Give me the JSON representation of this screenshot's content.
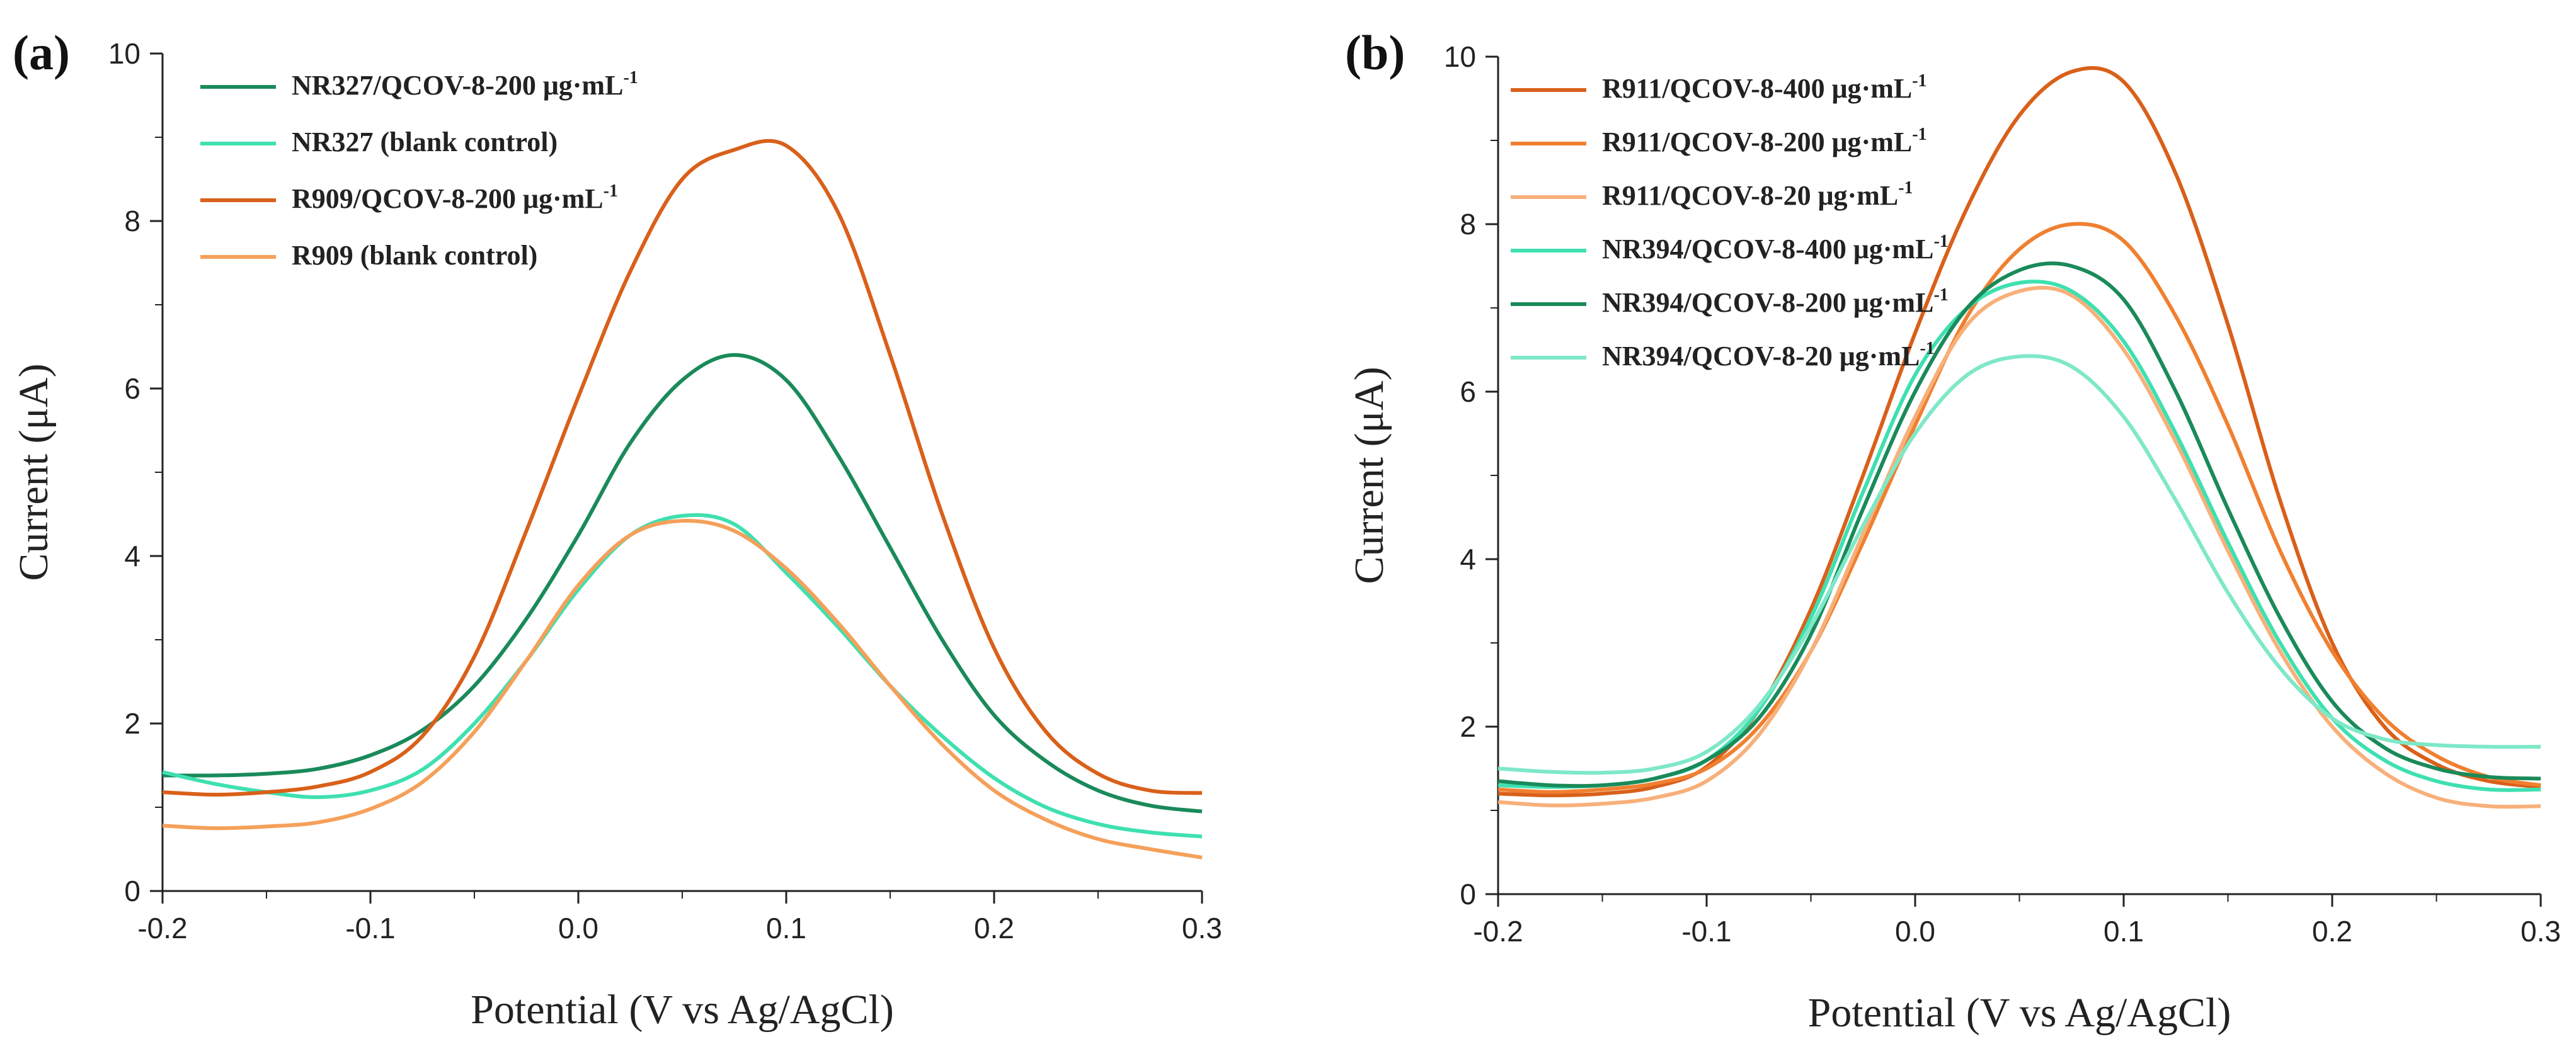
{
  "chart_data": [
    {
      "type": "line",
      "panel_label": "(a)",
      "xlabel": "Potential (V vs Ag/AgCl)",
      "ylabel": "Current (μA)",
      "xlim": [
        -0.2,
        0.3
      ],
      "ylim": [
        0,
        10
      ],
      "xticks": [
        "-0.2",
        "-0.1",
        "0.0",
        "0.1",
        "0.2",
        "0.3"
      ],
      "yticks": [
        "0",
        "2",
        "4",
        "6",
        "8",
        "10"
      ],
      "grid": false,
      "legend_position": "top-left",
      "x": [
        -0.2,
        -0.175,
        -0.15,
        -0.125,
        -0.1,
        -0.075,
        -0.05,
        -0.025,
        0.0,
        0.025,
        0.05,
        0.075,
        0.1,
        0.125,
        0.15,
        0.175,
        0.2,
        0.225,
        0.25,
        0.275,
        0.3
      ],
      "series": [
        {
          "name": "NR327/QCOV-8-200 μg·mL",
          "name_sup": "-1",
          "color": "#1a8a5a",
          "values": [
            1.38,
            1.38,
            1.4,
            1.46,
            1.62,
            1.92,
            2.45,
            3.25,
            4.25,
            5.35,
            6.1,
            6.4,
            6.1,
            5.2,
            4.1,
            3.0,
            2.1,
            1.55,
            1.2,
            1.02,
            0.95
          ]
        },
        {
          "name": "NR327 (blank control)",
          "color": "#3fe0b0",
          "values": [
            1.42,
            1.28,
            1.18,
            1.12,
            1.2,
            1.45,
            2.0,
            2.75,
            3.6,
            4.25,
            4.48,
            4.38,
            3.8,
            3.15,
            2.45,
            1.85,
            1.35,
            1.0,
            0.8,
            0.7,
            0.65
          ]
        },
        {
          "name": "R909/QCOV-8-200 μg·mL",
          "name_sup": "-1",
          "color": "#d9601a",
          "values": [
            1.18,
            1.15,
            1.18,
            1.25,
            1.42,
            1.85,
            2.8,
            4.3,
            5.9,
            7.4,
            8.5,
            8.85,
            8.9,
            8.1,
            6.4,
            4.5,
            2.9,
            1.9,
            1.4,
            1.2,
            1.17
          ]
        },
        {
          "name": "R909 (blank control)",
          "color": "#f5a05a",
          "values": [
            0.78,
            0.75,
            0.77,
            0.82,
            0.98,
            1.3,
            1.9,
            2.75,
            3.65,
            4.25,
            4.42,
            4.3,
            3.85,
            3.2,
            2.45,
            1.75,
            1.2,
            0.85,
            0.62,
            0.5,
            0.4
          ]
        }
      ]
    },
    {
      "type": "line",
      "panel_label": "(b)",
      "xlabel": "Potential (V vs Ag/AgCl)",
      "ylabel": "Current (μA)",
      "xlim": [
        -0.2,
        0.3
      ],
      "ylim": [
        0,
        10
      ],
      "xticks": [
        "-0.2",
        "-0.1",
        "0.0",
        "0.1",
        "0.2",
        "0.3"
      ],
      "yticks": [
        "0",
        "2",
        "4",
        "6",
        "8",
        "10"
      ],
      "grid": false,
      "legend_position": "top-left",
      "x": [
        -0.2,
        -0.175,
        -0.15,
        -0.125,
        -0.1,
        -0.075,
        -0.05,
        -0.025,
        0.0,
        0.025,
        0.05,
        0.075,
        0.1,
        0.125,
        0.15,
        0.175,
        0.2,
        0.225,
        0.25,
        0.275,
        0.3
      ],
      "series": [
        {
          "name": "R911/QCOV-8-400 μg·mL",
          "name_sup": "-1",
          "color": "#d9601a",
          "values": [
            1.2,
            1.18,
            1.2,
            1.28,
            1.52,
            2.2,
            3.4,
            5.0,
            6.7,
            8.2,
            9.3,
            9.82,
            9.7,
            8.6,
            6.8,
            4.7,
            3.0,
            2.0,
            1.55,
            1.35,
            1.28
          ]
        },
        {
          "name": "R911/QCOV-8-200 μg·mL",
          "name_sup": "-1",
          "color": "#f08030",
          "values": [
            1.25,
            1.22,
            1.25,
            1.32,
            1.5,
            2.0,
            2.9,
            4.2,
            5.6,
            6.9,
            7.7,
            8.0,
            7.8,
            6.9,
            5.6,
            4.1,
            2.9,
            2.1,
            1.65,
            1.4,
            1.3
          ]
        },
        {
          "name": "R911/QCOV-8-20 μg·mL",
          "name_sup": "-1",
          "color": "#f7b07a",
          "values": [
            1.1,
            1.06,
            1.08,
            1.15,
            1.35,
            1.9,
            2.9,
            4.3,
            5.7,
            6.8,
            7.2,
            7.15,
            6.5,
            5.4,
            4.1,
            2.9,
            2.0,
            1.45,
            1.15,
            1.05,
            1.05
          ]
        },
        {
          "name": "NR394/QCOV-8-400 μg·mL",
          "name_sup": "-1",
          "color": "#3fe0b0",
          "values": [
            1.3,
            1.28,
            1.3,
            1.38,
            1.6,
            2.2,
            3.3,
            4.8,
            6.2,
            7.0,
            7.3,
            7.2,
            6.6,
            5.5,
            4.2,
            3.0,
            2.1,
            1.6,
            1.35,
            1.25,
            1.25
          ]
        },
        {
          "name": "NR394/QCOV-8-200 μg·mL",
          "name_sup": "-1",
          "color": "#1a8a5a",
          "values": [
            1.35,
            1.3,
            1.3,
            1.38,
            1.6,
            2.1,
            3.1,
            4.6,
            6.0,
            7.0,
            7.45,
            7.5,
            7.1,
            6.0,
            4.6,
            3.3,
            2.3,
            1.75,
            1.5,
            1.4,
            1.38
          ]
        },
        {
          "name": "NR394/QCOV-8-20 μg·mL",
          "name_sup": "-1",
          "color": "#7ee8c8",
          "values": [
            1.5,
            1.46,
            1.45,
            1.5,
            1.7,
            2.25,
            3.2,
            4.4,
            5.5,
            6.2,
            6.42,
            6.3,
            5.7,
            4.7,
            3.6,
            2.7,
            2.1,
            1.85,
            1.78,
            1.76,
            1.76
          ]
        }
      ]
    }
  ]
}
